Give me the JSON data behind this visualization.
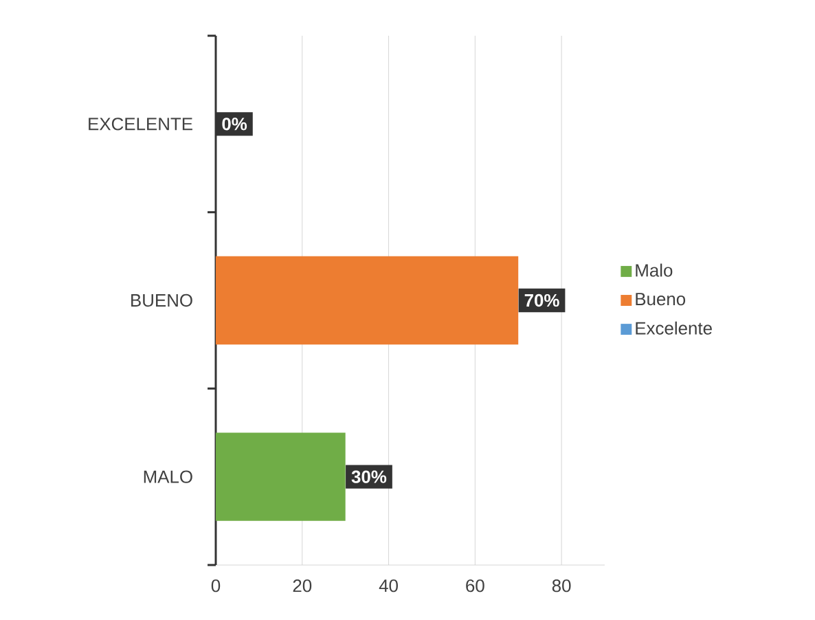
{
  "chart_data": {
    "type": "bar",
    "orientation": "horizontal",
    "categories": [
      "EXCELENTE",
      "BUENO",
      "MALO"
    ],
    "series": [
      {
        "name": "Malo",
        "color": "#70ad47",
        "values": [
          null,
          null,
          30
        ],
        "value_labels": [
          null,
          null,
          "30%"
        ]
      },
      {
        "name": "Bueno",
        "color": "#ed7d31",
        "values": [
          null,
          70,
          null
        ],
        "value_labels": [
          null,
          "70%",
          null
        ]
      },
      {
        "name": "Excelente",
        "color": "#5b9bd5",
        "values": [
          0,
          null,
          null
        ],
        "value_labels": [
          "0%",
          null,
          null
        ]
      }
    ],
    "xlim": [
      0,
      90
    ],
    "xticks": [
      0,
      20,
      40,
      60,
      80
    ],
    "grid": "x",
    "legend": "right"
  }
}
